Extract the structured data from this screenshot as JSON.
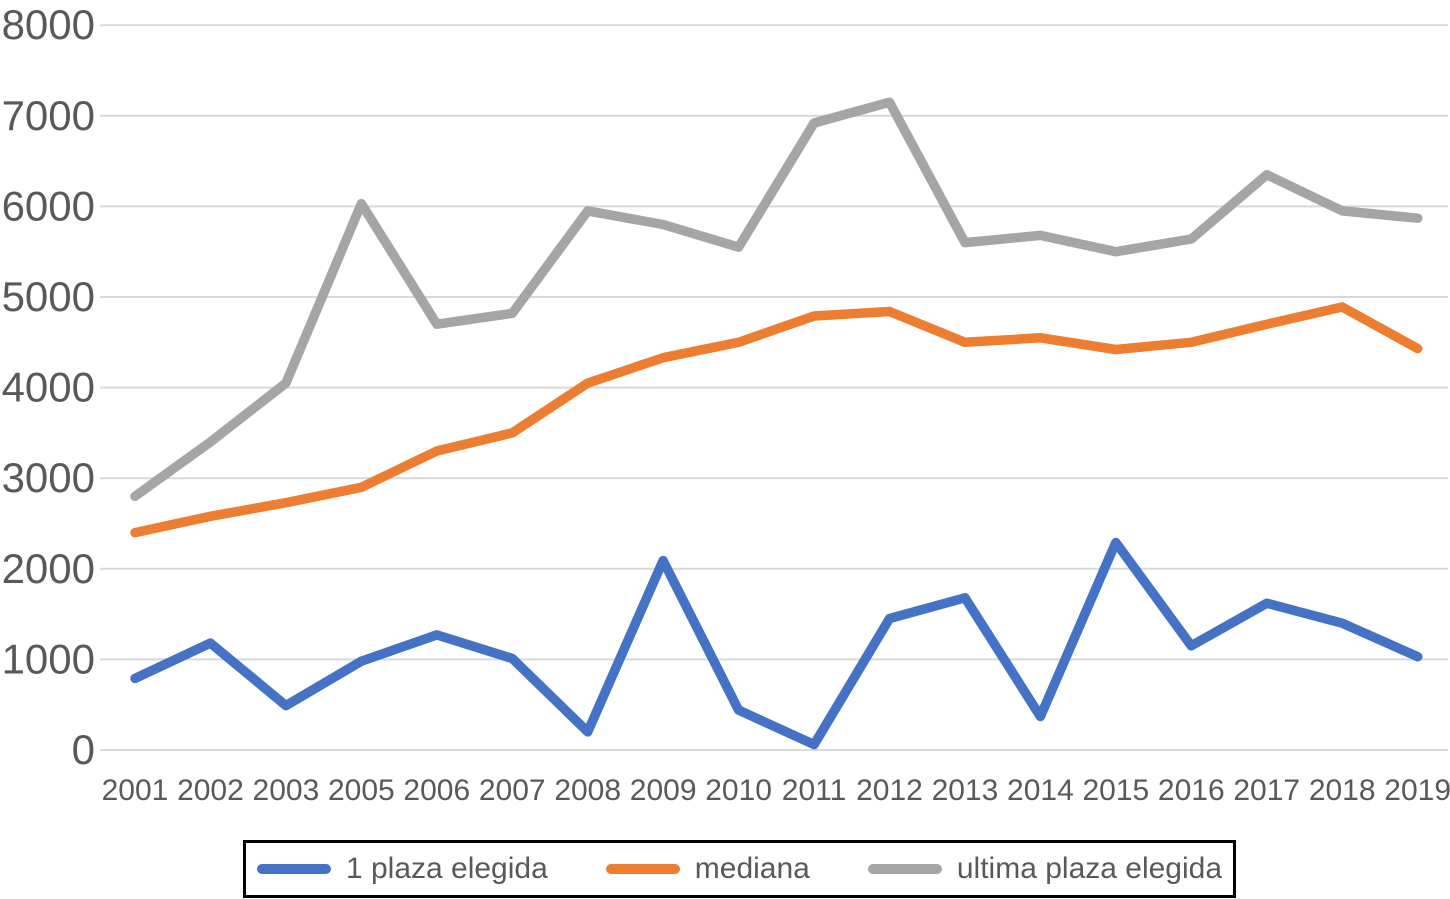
{
  "chart_data": {
    "type": "line",
    "title": "",
    "xlabel": "",
    "ylabel": "",
    "categories": [
      "2001",
      "2002",
      "2003",
      "2005",
      "2006",
      "2007",
      "2008",
      "2009",
      "2010",
      "2011",
      "2012",
      "2013",
      "2014",
      "2015",
      "2016",
      "2017",
      "2018",
      "2019"
    ],
    "series": [
      {
        "name": "1 plaza elegida",
        "color": "#4472C4",
        "values": [
          790,
          1180,
          490,
          980,
          1270,
          1010,
          200,
          2090,
          440,
          60,
          1450,
          1680,
          370,
          2290,
          1150,
          1620,
          1400,
          1030
        ]
      },
      {
        "name": "mediana",
        "color": "#ED7D31",
        "values": [
          2400,
          2580,
          2730,
          2900,
          3300,
          3500,
          4050,
          4330,
          4500,
          4790,
          4840,
          4500,
          4550,
          4420,
          4500,
          4700,
          4890,
          4430
        ]
      },
      {
        "name": "ultima plaza elegida",
        "color": "#A5A5A5",
        "values": [
          2800,
          3400,
          4050,
          6030,
          4700,
          4820,
          5950,
          5800,
          5550,
          6920,
          7150,
          5600,
          5680,
          5500,
          5640,
          6350,
          5950,
          5870
        ]
      }
    ],
    "ylim": [
      0,
      8000
    ],
    "ytick_step": 1000,
    "yticks": [
      "0",
      "1000",
      "2000",
      "3000",
      "4000",
      "5000",
      "6000",
      "7000",
      "8000"
    ],
    "grid": "horizontal",
    "legend_position": "bottom",
    "colors": {
      "gridline": "#D9D9D9",
      "tick_label": "#595959",
      "legend_text": "#595959",
      "legend_border": "#000000",
      "background": "#FFFFFF"
    }
  }
}
